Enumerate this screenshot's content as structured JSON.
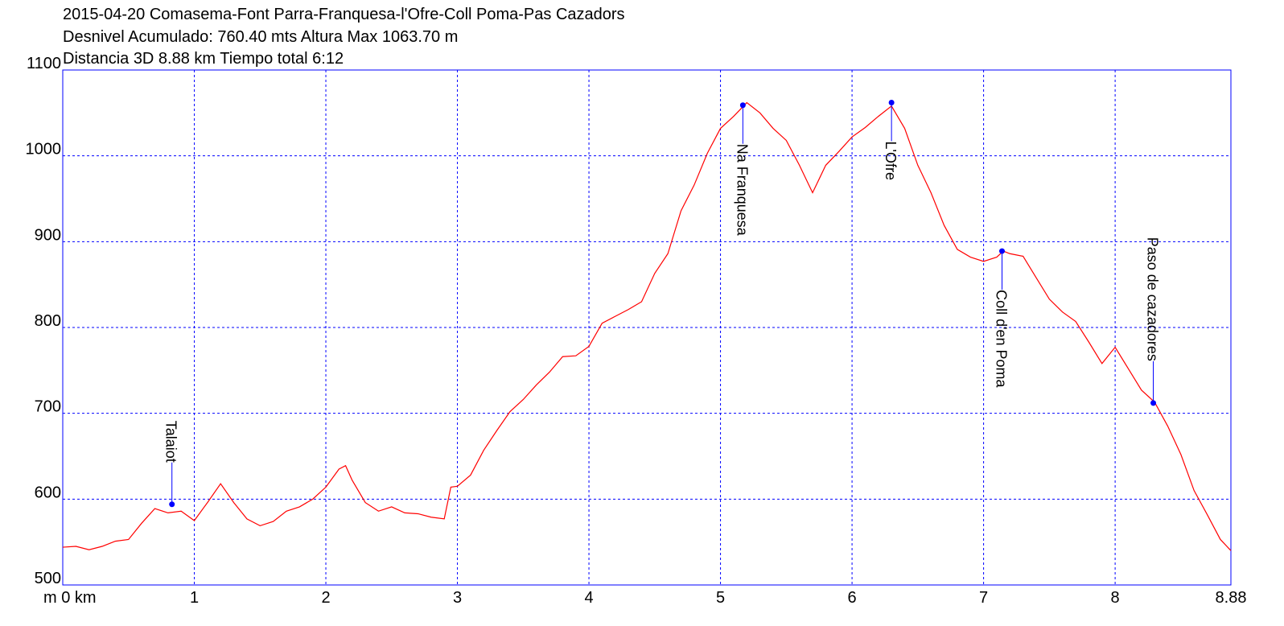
{
  "chart_data": {
    "type": "line",
    "title": "2015-04-20 Comasema-Font Parra-Franquesa-l'Ofre-Coll Poma-Pas Cazadors",
    "subtitles": [
      "Desnivel Acumulado: 760.40 mts  Altura Max 1063.70 m",
      "Distancia 3D 8.88 km  Tiempo total 6:12"
    ],
    "x": [
      0,
      0.1,
      0.2,
      0.3,
      0.4,
      0.5,
      0.6,
      0.7,
      0.8,
      0.9,
      1.0,
      1.1,
      1.2,
      1.3,
      1.4,
      1.5,
      1.6,
      1.7,
      1.8,
      1.9,
      2.0,
      2.1,
      2.15,
      2.2,
      2.3,
      2.4,
      2.5,
      2.6,
      2.7,
      2.8,
      2.9,
      2.95,
      3.0,
      3.1,
      3.2,
      3.3,
      3.4,
      3.5,
      3.6,
      3.7,
      3.8,
      3.9,
      4.0,
      4.1,
      4.2,
      4.3,
      4.4,
      4.5,
      4.6,
      4.7,
      4.8,
      4.9,
      5.0,
      5.1,
      5.2,
      5.3,
      5.4,
      5.5,
      5.6,
      5.7,
      5.8,
      5.9,
      6.0,
      6.1,
      6.2,
      6.3,
      6.4,
      6.5,
      6.6,
      6.7,
      6.8,
      6.9,
      7.0,
      7.1,
      7.15,
      7.2,
      7.3,
      7.4,
      7.5,
      7.6,
      7.7,
      7.8,
      7.9,
      8.0,
      8.1,
      8.2,
      8.3,
      8.4,
      8.5,
      8.6,
      8.7,
      8.8,
      8.88
    ],
    "series": [
      {
        "name": "Altura",
        "color": "#ff0000",
        "values": [
          544,
          545,
          541,
          545,
          551,
          553,
          572,
          589,
          584,
          586,
          575,
          596,
          618,
          596,
          577,
          569,
          574,
          586,
          591,
          600,
          614,
          635,
          639,
          622,
          596,
          586,
          591,
          584,
          583,
          579,
          577,
          614,
          615,
          628,
          657,
          680,
          702,
          716,
          733,
          748,
          766,
          767,
          778,
          805,
          813,
          821,
          830,
          863,
          886,
          936,
          966,
          1003,
          1032,
          1046,
          1062,
          1050,
          1032,
          1018,
          989,
          957,
          989,
          1005,
          1022,
          1033,
          1046,
          1058,
          1032,
          989,
          957,
          919,
          891,
          882,
          877,
          882,
          889,
          886,
          883,
          858,
          833,
          818,
          807,
          783,
          758,
          777,
          752,
          727,
          713,
          685,
          652,
          610,
          582,
          553,
          540
        ]
      }
    ],
    "waypoints": [
      {
        "name": "Talaiot",
        "x": 0.83,
        "value": 594
      },
      {
        "name": "Na Franquesa",
        "x": 5.17,
        "value": 1059
      },
      {
        "name": "L'Ofre",
        "x": 6.3,
        "value": 1062
      },
      {
        "name": "Coll d'en Poma",
        "x": 7.14,
        "value": 889
      },
      {
        "name": "Paso de cazadores",
        "x": 8.29,
        "value": 712
      }
    ],
    "waypoint_color": "#0000ff",
    "xlim": [
      0,
      8.88
    ],
    "ylim": [
      500,
      1100
    ],
    "xticks": [
      {
        "value": 0,
        "label": "m 0 km"
      },
      1,
      2,
      3,
      4,
      5,
      6,
      7,
      8,
      8.88
    ],
    "yticks": [
      500,
      600,
      700,
      800,
      900,
      1000,
      1100
    ],
    "grid": true,
    "grid_color": "#0000ff"
  }
}
